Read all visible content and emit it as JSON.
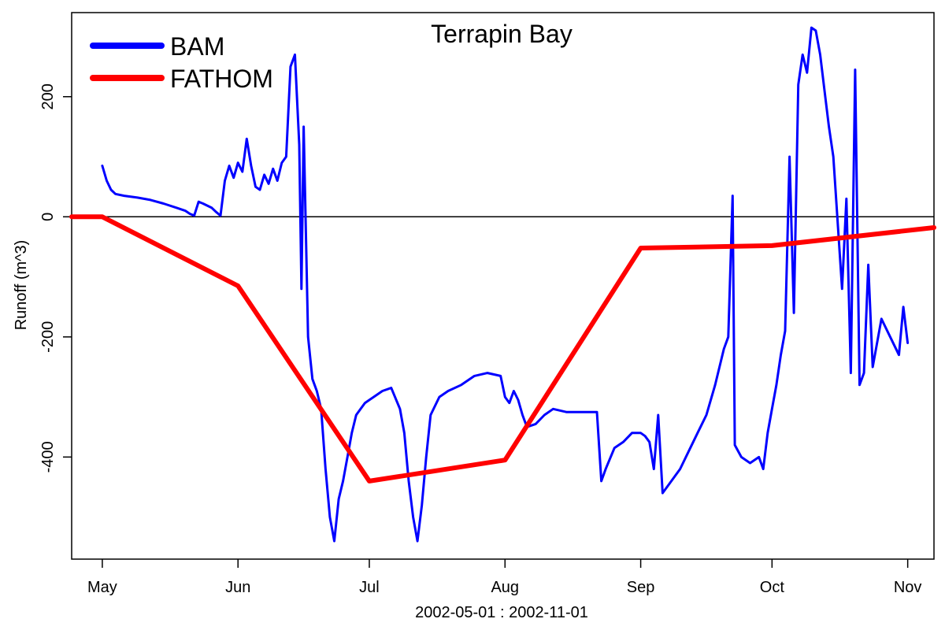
{
  "chart_data": {
    "type": "line",
    "title": "Terrapin Bay",
    "xlabel": "2002-05-01 : 2002-11-01",
    "ylabel": "Runoff (m^3)",
    "xlim": [
      "2002-04-24",
      "2002-11-07"
    ],
    "ylim": [
      -570,
      340
    ],
    "x_ticks": [
      {
        "date": "2002-05-01",
        "label": "May"
      },
      {
        "date": "2002-06-01",
        "label": "Jun"
      },
      {
        "date": "2002-07-01",
        "label": "Jul"
      },
      {
        "date": "2002-08-01",
        "label": "Aug"
      },
      {
        "date": "2002-09-01",
        "label": "Sep"
      },
      {
        "date": "2002-10-01",
        "label": "Oct"
      },
      {
        "date": "2002-11-01",
        "label": "Nov"
      }
    ],
    "y_ticks": [
      {
        "value": -400,
        "label": "-400"
      },
      {
        "value": -200,
        "label": "-200"
      },
      {
        "value": 0,
        "label": "0"
      },
      {
        "value": 200,
        "label": "200"
      }
    ],
    "reference_line": 0,
    "legend": {
      "placement": "top-left"
    },
    "series": [
      {
        "name": "BAM",
        "color": "#0000ff",
        "points": [
          [
            "2002-05-01",
            85
          ],
          [
            "2002-05-02",
            60
          ],
          [
            "2002-05-03",
            45
          ],
          [
            "2002-05-04",
            38
          ],
          [
            "2002-05-06",
            35
          ],
          [
            "2002-05-09",
            32
          ],
          [
            "2002-05-12",
            28
          ],
          [
            "2002-05-15",
            22
          ],
          [
            "2002-05-18",
            15
          ],
          [
            "2002-05-20",
            10
          ],
          [
            "2002-05-21",
            5
          ],
          [
            "2002-05-22",
            2
          ],
          [
            "2002-05-23",
            25
          ],
          [
            "2002-05-24",
            22
          ],
          [
            "2002-05-26",
            15
          ],
          [
            "2002-05-27",
            8
          ],
          [
            "2002-05-28",
            2
          ],
          [
            "2002-05-29",
            60
          ],
          [
            "2002-05-30",
            85
          ],
          [
            "2002-05-31",
            65
          ],
          [
            "2002-06-01",
            90
          ],
          [
            "2002-06-02",
            75
          ],
          [
            "2002-06-03",
            130
          ],
          [
            "2002-06-04",
            85
          ],
          [
            "2002-06-05",
            50
          ],
          [
            "2002-06-06",
            45
          ],
          [
            "2002-06-07",
            70
          ],
          [
            "2002-06-08",
            55
          ],
          [
            "2002-06-09",
            80
          ],
          [
            "2002-06-10",
            60
          ],
          [
            "2002-06-11",
            90
          ],
          [
            "2002-06-12",
            100
          ],
          [
            "2002-06-13",
            250
          ],
          [
            "2002-06-14",
            270
          ],
          [
            "2002-06-15",
            120
          ],
          [
            "2002-06-15T12",
            -120
          ],
          [
            "2002-06-16",
            150
          ],
          [
            "2002-06-17",
            -200
          ],
          [
            "2002-06-18",
            -270
          ],
          [
            "2002-06-19",
            -290
          ],
          [
            "2002-06-20",
            -320
          ],
          [
            "2002-06-21",
            -420
          ],
          [
            "2002-06-22",
            -500
          ],
          [
            "2002-06-23",
            -540
          ],
          [
            "2002-06-24",
            -470
          ],
          [
            "2002-06-25",
            -440
          ],
          [
            "2002-06-26",
            -400
          ],
          [
            "2002-06-27",
            -360
          ],
          [
            "2002-06-28",
            -330
          ],
          [
            "2002-06-29",
            -320
          ],
          [
            "2002-06-30",
            -310
          ],
          [
            "2002-07-02",
            -300
          ],
          [
            "2002-07-04",
            -290
          ],
          [
            "2002-07-06",
            -285
          ],
          [
            "2002-07-08",
            -320
          ],
          [
            "2002-07-09",
            -360
          ],
          [
            "2002-07-10",
            -440
          ],
          [
            "2002-07-11",
            -500
          ],
          [
            "2002-07-12",
            -540
          ],
          [
            "2002-07-13",
            -480
          ],
          [
            "2002-07-14",
            -400
          ],
          [
            "2002-07-15",
            -330
          ],
          [
            "2002-07-17",
            -300
          ],
          [
            "2002-07-19",
            -290
          ],
          [
            "2002-07-22",
            -280
          ],
          [
            "2002-07-25",
            -265
          ],
          [
            "2002-07-28",
            -260
          ],
          [
            "2002-07-31",
            -265
          ],
          [
            "2002-08-01",
            -300
          ],
          [
            "2002-08-02",
            -310
          ],
          [
            "2002-08-03",
            -290
          ],
          [
            "2002-08-04",
            -305
          ],
          [
            "2002-08-05",
            -330
          ],
          [
            "2002-08-06",
            -350
          ],
          [
            "2002-08-08",
            -345
          ],
          [
            "2002-08-10",
            -330
          ],
          [
            "2002-08-12",
            -320
          ],
          [
            "2002-08-15",
            -325
          ],
          [
            "2002-08-18",
            -325
          ],
          [
            "2002-08-22",
            -325
          ],
          [
            "2002-08-23",
            -440
          ],
          [
            "2002-08-24",
            -420
          ],
          [
            "2002-08-26",
            -385
          ],
          [
            "2002-08-28",
            -375
          ],
          [
            "2002-08-30",
            -360
          ],
          [
            "2002-09-01",
            -360
          ],
          [
            "2002-09-02",
            -365
          ],
          [
            "2002-09-03",
            -375
          ],
          [
            "2002-09-04",
            -420
          ],
          [
            "2002-09-05",
            -330
          ],
          [
            "2002-09-06",
            -460
          ],
          [
            "2002-09-08",
            -440
          ],
          [
            "2002-09-10",
            -420
          ],
          [
            "2002-09-12",
            -390
          ],
          [
            "2002-09-14",
            -360
          ],
          [
            "2002-09-16",
            -330
          ],
          [
            "2002-09-18",
            -280
          ],
          [
            "2002-09-20",
            -220
          ],
          [
            "2002-09-21",
            -200
          ],
          [
            "2002-09-22",
            35
          ],
          [
            "2002-09-22T12",
            -380
          ],
          [
            "2002-09-24",
            -400
          ],
          [
            "2002-09-26",
            -410
          ],
          [
            "2002-09-28",
            -400
          ],
          [
            "2002-09-29",
            -420
          ],
          [
            "2002-09-30",
            -360
          ],
          [
            "2002-10-01",
            -320
          ],
          [
            "2002-10-02",
            -280
          ],
          [
            "2002-10-03",
            -230
          ],
          [
            "2002-10-04",
            -190
          ],
          [
            "2002-10-05",
            100
          ],
          [
            "2002-10-06",
            -160
          ],
          [
            "2002-10-07",
            220
          ],
          [
            "2002-10-08",
            270
          ],
          [
            "2002-10-09",
            240
          ],
          [
            "2002-10-10",
            315
          ],
          [
            "2002-10-11",
            310
          ],
          [
            "2002-10-12",
            270
          ],
          [
            "2002-10-13",
            210
          ],
          [
            "2002-10-14",
            150
          ],
          [
            "2002-10-15",
            100
          ],
          [
            "2002-10-17",
            -120
          ],
          [
            "2002-10-18",
            30
          ],
          [
            "2002-10-19",
            -260
          ],
          [
            "2002-10-20",
            245
          ],
          [
            "2002-10-21",
            -280
          ],
          [
            "2002-10-22",
            -260
          ],
          [
            "2002-10-23",
            -80
          ],
          [
            "2002-10-24",
            -250
          ],
          [
            "2002-10-26",
            -170
          ],
          [
            "2002-10-28",
            -200
          ],
          [
            "2002-10-30",
            -230
          ],
          [
            "2002-10-31",
            -150
          ],
          [
            "2002-11-01",
            -210
          ]
        ]
      },
      {
        "name": "FATHOM",
        "color": "#ff0000",
        "points": [
          [
            "2002-04-24",
            0
          ],
          [
            "2002-05-01",
            0
          ],
          [
            "2002-06-01",
            -115
          ],
          [
            "2002-07-01",
            -440
          ],
          [
            "2002-08-01",
            -405
          ],
          [
            "2002-09-01",
            -52
          ],
          [
            "2002-10-01",
            -48
          ],
          [
            "2002-11-07",
            -18
          ]
        ]
      }
    ]
  }
}
